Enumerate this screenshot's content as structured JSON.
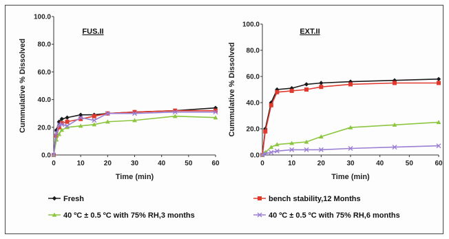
{
  "chart_data": [
    {
      "type": "line",
      "title": "FUS.II",
      "xlabel": "Time (min)",
      "ylabel": "Cummulative %  Dissolved",
      "xlim": [
        0,
        60
      ],
      "ylim": [
        0,
        100
      ],
      "xticks": [
        "0",
        "10",
        "20",
        "30",
        "40",
        "50",
        "60"
      ],
      "yticks": [
        "0.0",
        "20.0",
        "40.0",
        "60.0",
        "80.0",
        "100.0"
      ],
      "x": [
        0,
        1,
        2,
        3,
        5,
        10,
        15,
        20,
        30,
        45,
        60
      ],
      "grid": false,
      "series": [
        {
          "name": "Fresh",
          "color": "#1a1a1a",
          "values": [
            0,
            18,
            24,
            26,
            27,
            29,
            29,
            30,
            31,
            32,
            34
          ]
        },
        {
          "name": "bench stability,12 Months",
          "color": "#e03a2f",
          "values": [
            0,
            14,
            20,
            23,
            24,
            26,
            28,
            30,
            31,
            32,
            32
          ]
        },
        {
          "name": "40 ºC ± 0.5 ºC with 75%  RH,3 months",
          "color": "#8cc63f",
          "values": [
            0,
            11,
            15,
            18,
            20,
            21,
            22,
            24,
            25,
            28,
            27
          ]
        },
        {
          "name": "40 ºC ± 0.5 ºC with 75%  RH,6 months",
          "color": "#9b7fd4",
          "values": [
            0,
            16,
            22,
            22,
            21,
            27,
            25,
            30,
            30,
            31,
            31
          ]
        }
      ]
    },
    {
      "type": "line",
      "title": "EXT.II",
      "xlabel": "Time (min)",
      "ylabel": "Cummulative %  Dissolved",
      "xlim": [
        0,
        60
      ],
      "ylim": [
        0,
        100
      ],
      "xticks": [
        "0",
        "10",
        "20",
        "30",
        "40",
        "50",
        "60"
      ],
      "yticks": [
        "0.0",
        "20.0",
        "40.0",
        "60.0",
        "80.0",
        "100.0"
      ],
      "x": [
        0,
        1,
        3,
        5,
        10,
        15,
        20,
        30,
        45,
        60
      ],
      "grid": false,
      "series": [
        {
          "name": "Fresh",
          "color": "#1a1a1a",
          "values": [
            0,
            20,
            40,
            50,
            51,
            54,
            55,
            56,
            57,
            58
          ]
        },
        {
          "name": "bench stability,12 Months",
          "color": "#e03a2f",
          "values": [
            0,
            18,
            38,
            48,
            49,
            50,
            52,
            54,
            55,
            55
          ]
        },
        {
          "name": "40 ºC ± 0.5 ºC with 75%  RH,3 months",
          "color": "#8cc63f",
          "values": [
            0,
            2,
            6,
            8,
            9,
            10,
            14,
            21,
            23,
            25
          ]
        },
        {
          "name": "40 ºC ± 0.5 ºC with 75%  RH,6 months",
          "color": "#9b7fd4",
          "values": [
            0,
            1,
            2,
            3,
            4,
            4,
            4,
            5,
            6,
            7
          ]
        }
      ]
    }
  ],
  "legend": {
    "placement": "bottom",
    "entries": [
      {
        "label": "Fresh",
        "color": "#1a1a1a",
        "marker": "diamond"
      },
      {
        "label": "bench stability,12 Months",
        "color": "#e03a2f",
        "marker": "square"
      },
      {
        "label": "40 ºC ± 0.5 ºC with 75%  RH,3 months",
        "color": "#8cc63f",
        "marker": "triangle"
      },
      {
        "label": "40 ºC ± 0.5 ºC with 75%  RH,6 months",
        "color": "#9b7fd4",
        "marker": "x"
      }
    ]
  }
}
